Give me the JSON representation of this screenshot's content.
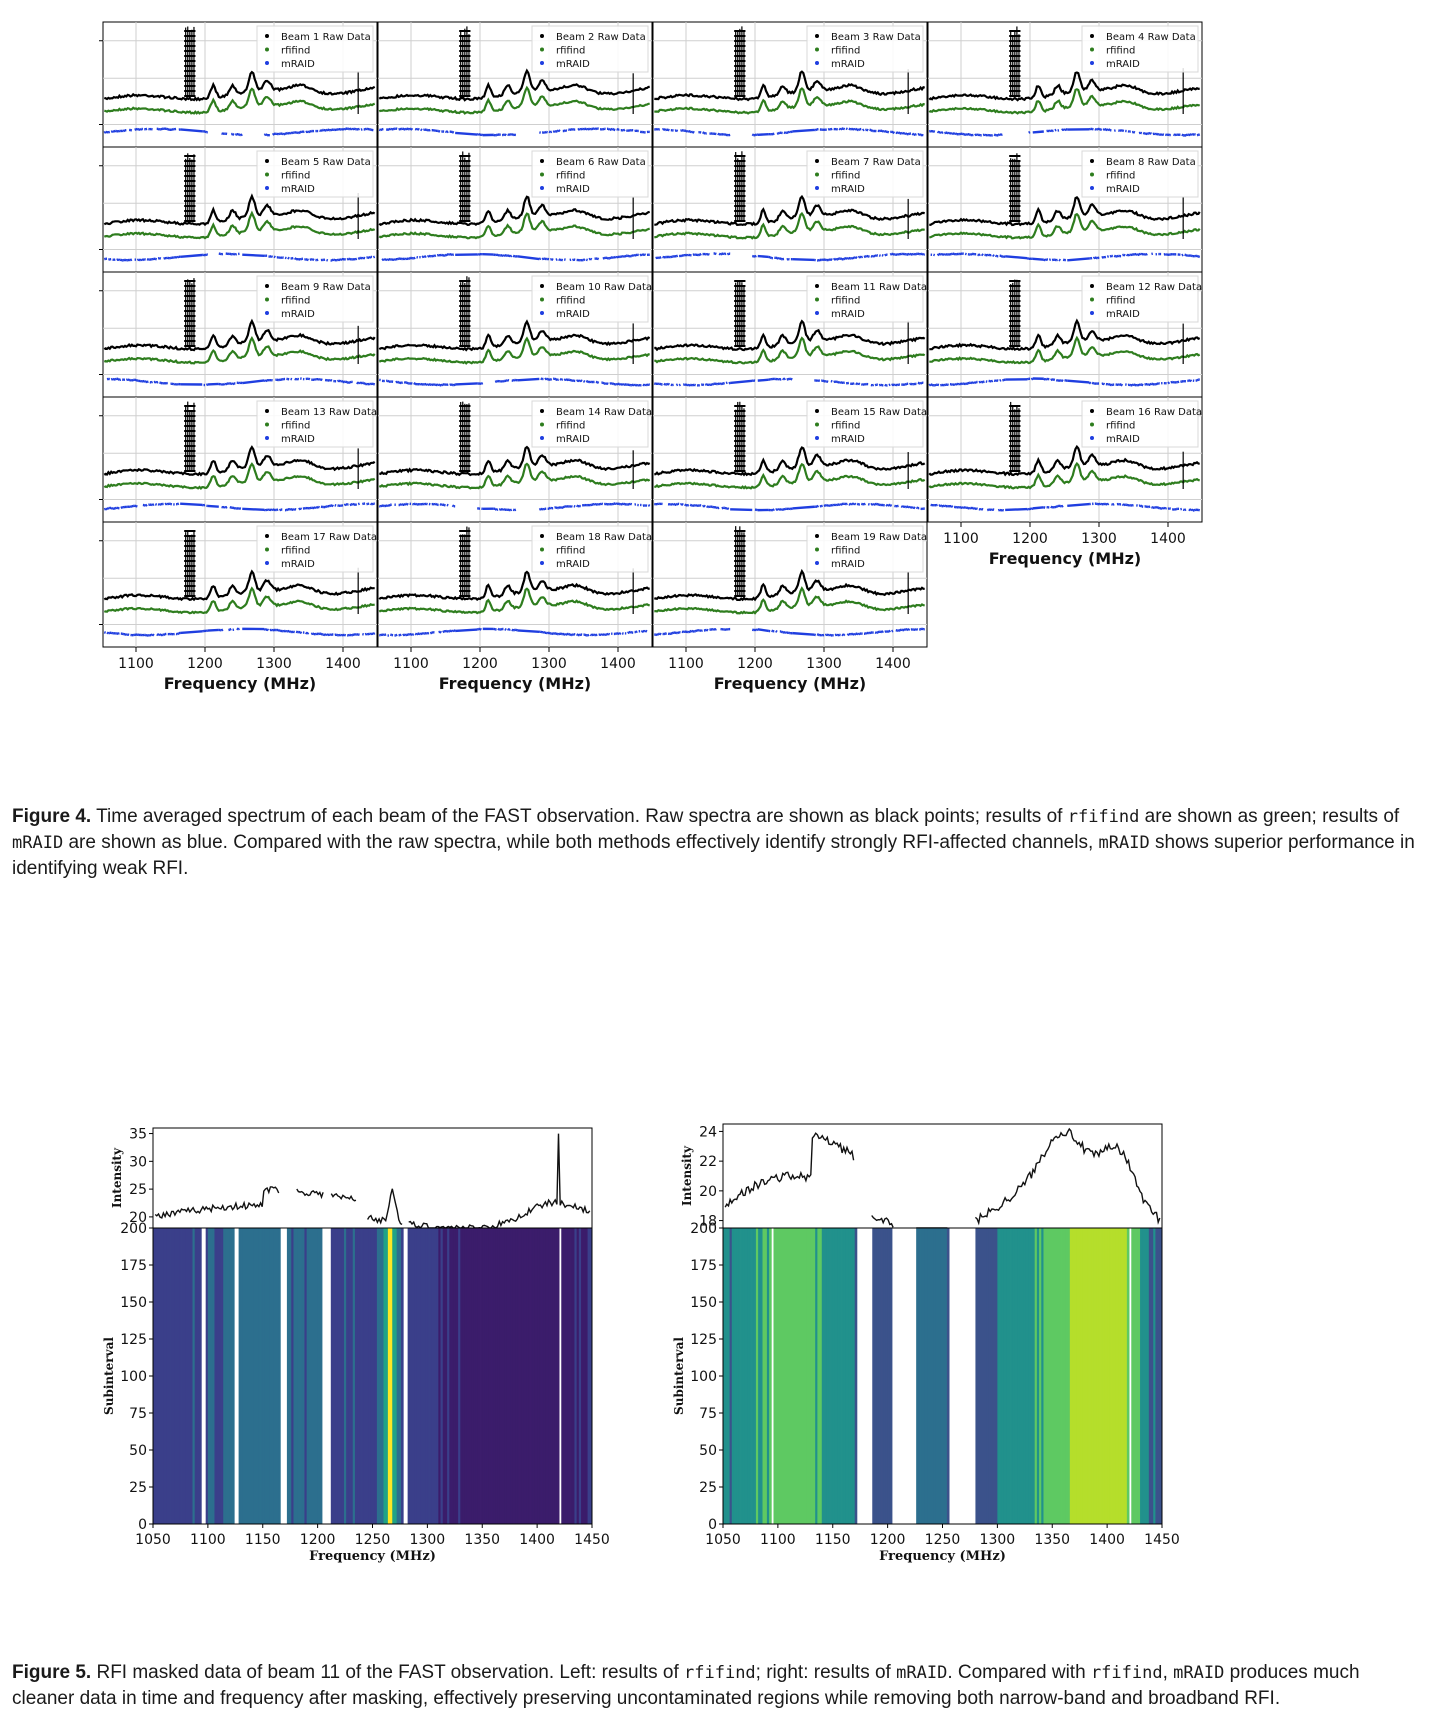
{
  "figure4": {
    "caption": {
      "label": "Figure 4.",
      "part1": " Time averaged spectrum of each beam of the FAST observation. Raw spectra are shown as black points; results of ",
      "code1": "rfifind",
      "part2": " are shown as green; results of ",
      "code2": "mRAID",
      "part3": " are shown as blue. Compared with the raw spectra, while both methods effectively identify strongly RFI-affected channels, ",
      "code3": "mRAID",
      "part4": " shows superior performance in identifying weak RFI."
    },
    "xlabel": "Frequency (MHz)",
    "xticks": [
      "1100",
      "1200",
      "1300",
      "1400"
    ],
    "legend": {
      "rfifind": "rfifind",
      "mraid": "mRAID"
    },
    "beams": [
      "Beam 1 Raw Data",
      "Beam 2 Raw Data",
      "Beam 3 Raw Data",
      "Beam 4 Raw Data",
      "Beam 5 Raw Data",
      "Beam 6 Raw Data",
      "Beam 7 Raw Data",
      "Beam 8 Raw Data",
      "Beam 9 Raw Data",
      "Beam 10 Raw Data",
      "Beam 11 Raw Data",
      "Beam 12 Raw Data",
      "Beam 13 Raw Data",
      "Beam 14 Raw Data",
      "Beam 15 Raw Data",
      "Beam 16 Raw Data",
      "Beam 17 Raw Data",
      "Beam 18 Raw Data",
      "Beam 19 Raw Data"
    ],
    "colors": {
      "raw": "#000000",
      "rfifind": "#2e7d1e",
      "mraid": "#1f3ee0"
    }
  },
  "figure5": {
    "caption": {
      "label": "Figure 5.",
      "part1": " RFI masked data of beam 11 of the FAST observation. Left: results of ",
      "code1": "rfifind",
      "part2": "; right: results of ",
      "code2": "mRAID",
      "part3": ". Compared with ",
      "code3": "rfifind",
      "part4": ", ",
      "code4": "mRAID",
      "part5": " produces much cleaner data in time and frequency after masking, effectively preserving uncontaminated regions while removing both narrow-band and broadband RFI."
    },
    "panels": [
      {
        "ylabel_top": "Intensity",
        "ylabel_bottom": "Subinterval",
        "xlabel": "Frequency (MHz)",
        "top_yticks": [
          "20",
          "25",
          "30",
          "35"
        ],
        "bottom_yticks": [
          "0",
          "25",
          "50",
          "75",
          "100",
          "125",
          "150",
          "175",
          "200"
        ],
        "xticks": [
          "1050",
          "1100",
          "1150",
          "1200",
          "1250",
          "1300",
          "1350",
          "1400",
          "1450"
        ]
      },
      {
        "ylabel_top": "Intensity",
        "ylabel_bottom": "Subinterval",
        "xlabel": "Frequency (MHz)",
        "top_yticks": [
          "18",
          "20",
          "22",
          "24"
        ],
        "bottom_yticks": [
          "0",
          "25",
          "50",
          "75",
          "100",
          "125",
          "150",
          "175",
          "200"
        ],
        "xticks": [
          "1050",
          "1100",
          "1150",
          "1200",
          "1250",
          "1300",
          "1350",
          "1400",
          "1450"
        ]
      }
    ]
  }
}
